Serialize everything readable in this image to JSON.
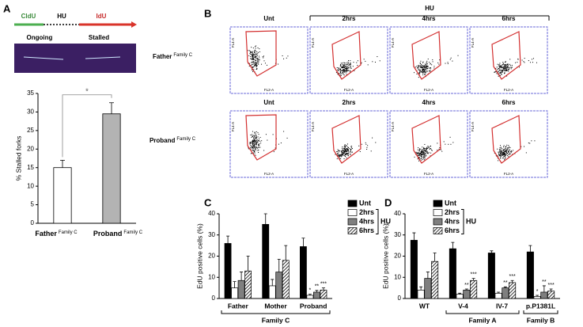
{
  "panel_labels": [
    "A",
    "B",
    "C",
    "D"
  ],
  "schematic": {
    "pulse1": "CldU",
    "treatment": "HU",
    "pulse2": "IdU",
    "fiber_left": "Ongoing",
    "fiber_right": "Stalled"
  },
  "flow_panel": {
    "treatment": "HU",
    "columns": [
      "Unt",
      "2hrs",
      "4hrs",
      "6hrs"
    ],
    "rows": [
      {
        "label": "Father",
        "superscript": "Family C"
      },
      {
        "label": "Proband",
        "superscript": "Family C"
      }
    ],
    "x_axis": "FL2-A",
    "y_axis": "FL4-A"
  },
  "chart_data": [
    {
      "type": "bar",
      "ylabel": "% Stalled forks",
      "categories": [
        "Father",
        "Proband"
      ],
      "category_superscripts": [
        "Family C",
        "Family C"
      ],
      "values": [
        15,
        29.5
      ],
      "errors": [
        2,
        3
      ],
      "colors": [
        "#ffffff",
        "#b3b3b3"
      ],
      "significance": "*",
      "ylim": [
        0,
        35
      ],
      "yticks": [
        0,
        5,
        10,
        15,
        20,
        25,
        30,
        35
      ]
    },
    {
      "type": "grouped_bar",
      "ylabel": "EdU positive cells (%)",
      "categories": [
        "Father",
        "Mother",
        "Proband"
      ],
      "groups": [
        {
          "label": "Family C",
          "from": "Father",
          "to": "Proband"
        }
      ],
      "legend_bracket": "HU",
      "ylim": [
        0,
        40
      ],
      "yticks": [
        0,
        10,
        20,
        30,
        40
      ],
      "series": [
        {
          "name": "Unt",
          "color": "#000000",
          "values": [
            26,
            35,
            24.5
          ],
          "errors": [
            3.5,
            5,
            4
          ],
          "annotations": [
            null,
            null,
            null
          ]
        },
        {
          "name": "2hrs",
          "color": "#ffffff",
          "values": [
            5,
            6,
            1.5
          ],
          "errors": [
            3,
            3,
            0.5
          ],
          "annotations": [
            null,
            null,
            "*"
          ]
        },
        {
          "name": "4hrs",
          "color": "#7f7f7f",
          "values": [
            8.5,
            12.5,
            3
          ],
          "errors": [
            4,
            6,
            0.8
          ],
          "annotations": [
            null,
            null,
            "**"
          ]
        },
        {
          "name": "6hrs",
          "color": "hatch",
          "values": [
            13,
            18,
            4
          ],
          "errors": [
            7,
            7,
            1
          ],
          "annotations": [
            null,
            null,
            "***"
          ]
        }
      ]
    },
    {
      "type": "grouped_bar",
      "ylabel": "EdU positive cells (%)",
      "categories": [
        "WT",
        "V-4",
        "IV-7",
        "p.P1381L"
      ],
      "groups": [
        {
          "label": "Family A",
          "from": "V-4",
          "to": "IV-7"
        },
        {
          "label": "Family B",
          "from": "p.P1381L",
          "to": "p.P1381L"
        }
      ],
      "legend_bracket": "HU",
      "ylim": [
        0,
        40
      ],
      "yticks": [
        0,
        10,
        20,
        30,
        40
      ],
      "series": [
        {
          "name": "Unt",
          "color": "#000000",
          "values": [
            27.5,
            23.5,
            21.5,
            22
          ],
          "errors": [
            3.5,
            3,
            1,
            3
          ],
          "annotations": [
            null,
            null,
            null,
            null
          ]
        },
        {
          "name": "2hrs",
          "color": "#ffffff",
          "values": [
            4,
            2,
            2.5,
            1
          ],
          "errors": [
            1.5,
            0.5,
            0.5,
            0.5
          ],
          "annotations": [
            null,
            null,
            null,
            "*"
          ]
        },
        {
          "name": "4hrs",
          "color": "#7f7f7f",
          "values": [
            9.5,
            4,
            5,
            3
          ],
          "errors": [
            3,
            0.5,
            0.5,
            3
          ],
          "annotations": [
            null,
            "**",
            "**",
            "**"
          ]
        },
        {
          "name": "6hrs",
          "color": "hatch",
          "values": [
            17.5,
            8.5,
            7.5,
            3.5
          ],
          "errors": [
            4,
            1,
            1,
            1
          ],
          "annotations": [
            null,
            "***",
            "***",
            "***"
          ]
        }
      ]
    }
  ]
}
